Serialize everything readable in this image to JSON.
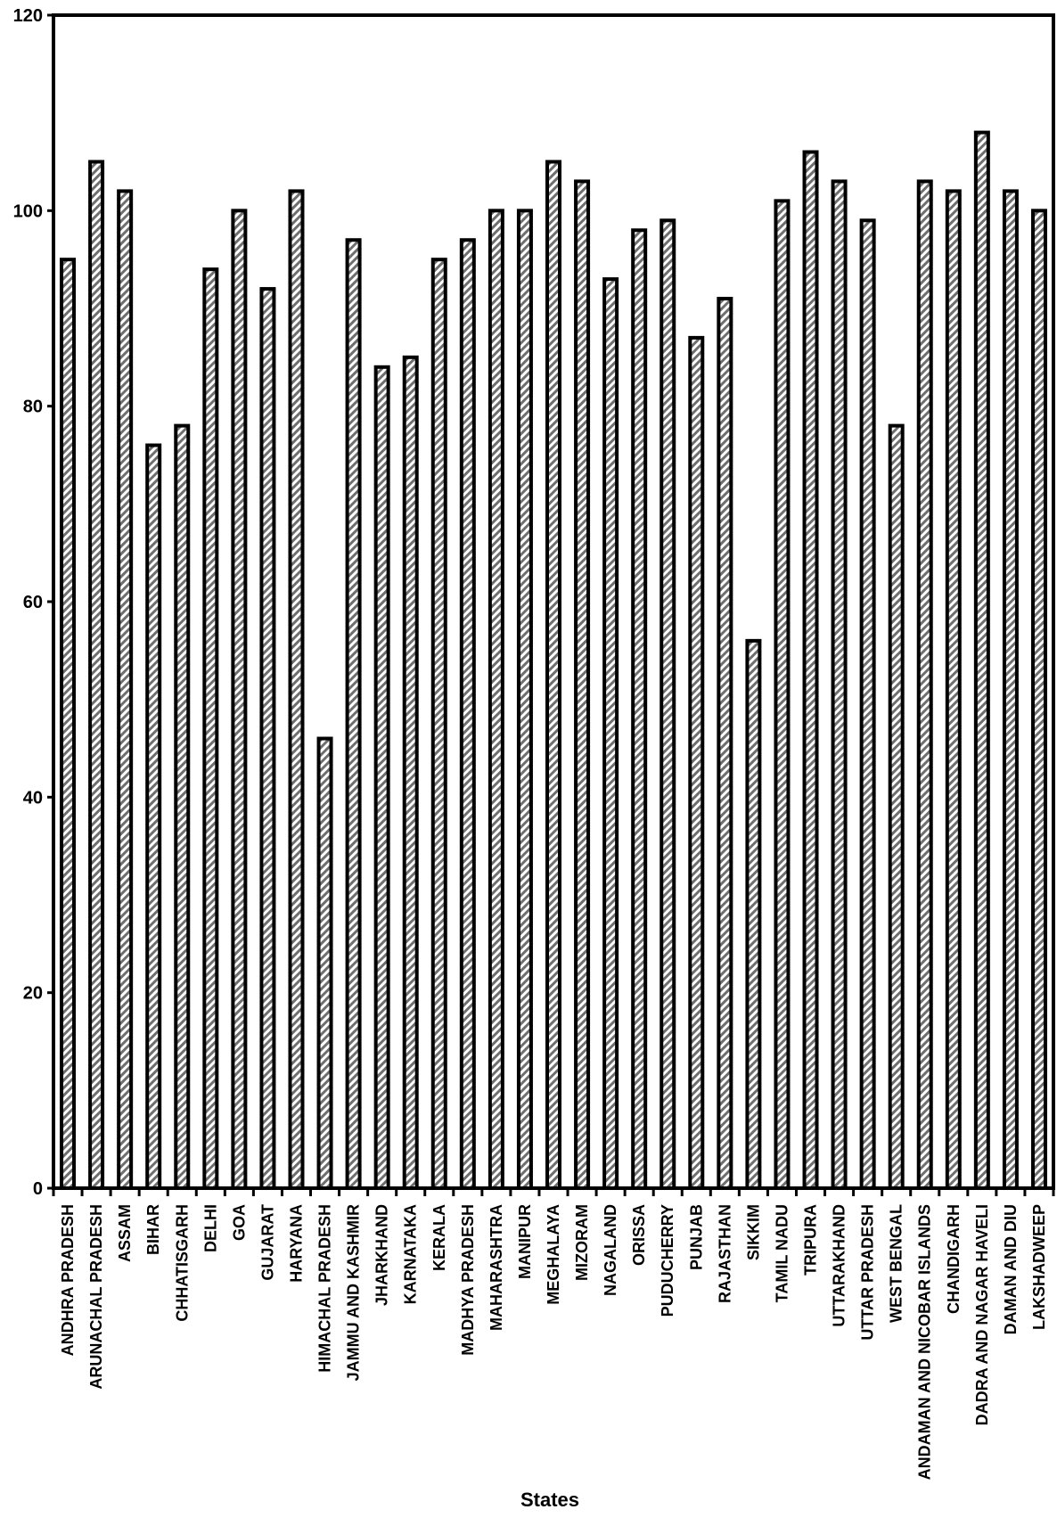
{
  "chart_data": {
    "type": "bar",
    "title": "",
    "xlabel": "States",
    "ylabel": "",
    "ylim": [
      0,
      120
    ],
    "yticks": [
      0,
      20,
      40,
      60,
      80,
      100,
      120
    ],
    "grid": false,
    "legend": "none",
    "bar_fill": "hatched-gray",
    "bar_stroke": "#000000",
    "categories": [
      "ANDHRA PRADESH",
      "ARUNACHAL PRADESH",
      "ASSAM",
      "BIHAR",
      "CHHATISGARH",
      "DELHI",
      "GOA",
      "GUJARAT",
      "HARYANA",
      "HIMACHAL PRADESH",
      "JAMMU AND KASHMIR",
      "JHARKHAND",
      "KARNATAKA",
      "KERALA",
      "MADHYA PRADESH",
      "MAHARASHTRA",
      "MANIPUR",
      "MEGHALAYA",
      "MIZORAM",
      "NAGALAND",
      "ORISSA",
      "PUDUCHERRY",
      "PUNJAB",
      "RAJASTHAN",
      "SIKKIM",
      "TAMIL NADU",
      "TRIPURA",
      "UTTARAKHAND",
      "UTTAR PRADESH",
      "WEST BENGAL",
      "ANDAMAN AND NICOBAR ISLANDS",
      "CHANDIGARH",
      "DADRA AND NAGAR HAVELI",
      "DAMAN AND DIU",
      "LAKSHADWEEP"
    ],
    "values": [
      95,
      105,
      102,
      76,
      78,
      94,
      100,
      92,
      102,
      46,
      97,
      84,
      85,
      95,
      97,
      100,
      100,
      105,
      103,
      93,
      98,
      99,
      87,
      91,
      56,
      101,
      106,
      103,
      99,
      78,
      103,
      102,
      108,
      102,
      100
    ]
  }
}
